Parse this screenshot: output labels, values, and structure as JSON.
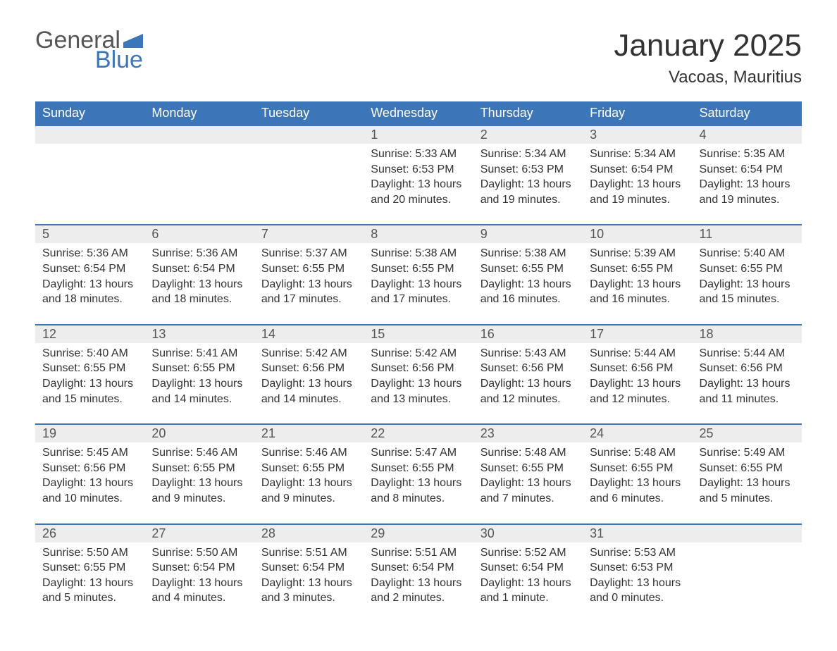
{
  "logo": {
    "text1": "General",
    "text2": "Blue",
    "shape_color": "#3D76B8"
  },
  "title": "January 2025",
  "location": "Vacoas, Mauritius",
  "colors": {
    "header_bg": "#3D76B8",
    "header_text": "#ffffff",
    "daynum_bg": "#EDEDED",
    "border": "#3D76B8",
    "text": "#333333",
    "background": "#ffffff"
  },
  "fonts": {
    "title_size_pt": 33,
    "location_size_pt": 18,
    "header_size_pt": 14,
    "daynum_size_pt": 14,
    "body_size_pt": 12
  },
  "weekdays": [
    "Sunday",
    "Monday",
    "Tuesday",
    "Wednesday",
    "Thursday",
    "Friday",
    "Saturday"
  ],
  "weeks": [
    [
      null,
      null,
      null,
      {
        "n": "1",
        "sunrise": "Sunrise: 5:33 AM",
        "sunset": "Sunset: 6:53 PM",
        "day1": "Daylight: 13 hours",
        "day2": "and 20 minutes."
      },
      {
        "n": "2",
        "sunrise": "Sunrise: 5:34 AM",
        "sunset": "Sunset: 6:53 PM",
        "day1": "Daylight: 13 hours",
        "day2": "and 19 minutes."
      },
      {
        "n": "3",
        "sunrise": "Sunrise: 5:34 AM",
        "sunset": "Sunset: 6:54 PM",
        "day1": "Daylight: 13 hours",
        "day2": "and 19 minutes."
      },
      {
        "n": "4",
        "sunrise": "Sunrise: 5:35 AM",
        "sunset": "Sunset: 6:54 PM",
        "day1": "Daylight: 13 hours",
        "day2": "and 19 minutes."
      }
    ],
    [
      {
        "n": "5",
        "sunrise": "Sunrise: 5:36 AM",
        "sunset": "Sunset: 6:54 PM",
        "day1": "Daylight: 13 hours",
        "day2": "and 18 minutes."
      },
      {
        "n": "6",
        "sunrise": "Sunrise: 5:36 AM",
        "sunset": "Sunset: 6:54 PM",
        "day1": "Daylight: 13 hours",
        "day2": "and 18 minutes."
      },
      {
        "n": "7",
        "sunrise": "Sunrise: 5:37 AM",
        "sunset": "Sunset: 6:55 PM",
        "day1": "Daylight: 13 hours",
        "day2": "and 17 minutes."
      },
      {
        "n": "8",
        "sunrise": "Sunrise: 5:38 AM",
        "sunset": "Sunset: 6:55 PM",
        "day1": "Daylight: 13 hours",
        "day2": "and 17 minutes."
      },
      {
        "n": "9",
        "sunrise": "Sunrise: 5:38 AM",
        "sunset": "Sunset: 6:55 PM",
        "day1": "Daylight: 13 hours",
        "day2": "and 16 minutes."
      },
      {
        "n": "10",
        "sunrise": "Sunrise: 5:39 AM",
        "sunset": "Sunset: 6:55 PM",
        "day1": "Daylight: 13 hours",
        "day2": "and 16 minutes."
      },
      {
        "n": "11",
        "sunrise": "Sunrise: 5:40 AM",
        "sunset": "Sunset: 6:55 PM",
        "day1": "Daylight: 13 hours",
        "day2": "and 15 minutes."
      }
    ],
    [
      {
        "n": "12",
        "sunrise": "Sunrise: 5:40 AM",
        "sunset": "Sunset: 6:55 PM",
        "day1": "Daylight: 13 hours",
        "day2": "and 15 minutes."
      },
      {
        "n": "13",
        "sunrise": "Sunrise: 5:41 AM",
        "sunset": "Sunset: 6:55 PM",
        "day1": "Daylight: 13 hours",
        "day2": "and 14 minutes."
      },
      {
        "n": "14",
        "sunrise": "Sunrise: 5:42 AM",
        "sunset": "Sunset: 6:56 PM",
        "day1": "Daylight: 13 hours",
        "day2": "and 14 minutes."
      },
      {
        "n": "15",
        "sunrise": "Sunrise: 5:42 AM",
        "sunset": "Sunset: 6:56 PM",
        "day1": "Daylight: 13 hours",
        "day2": "and 13 minutes."
      },
      {
        "n": "16",
        "sunrise": "Sunrise: 5:43 AM",
        "sunset": "Sunset: 6:56 PM",
        "day1": "Daylight: 13 hours",
        "day2": "and 12 minutes."
      },
      {
        "n": "17",
        "sunrise": "Sunrise: 5:44 AM",
        "sunset": "Sunset: 6:56 PM",
        "day1": "Daylight: 13 hours",
        "day2": "and 12 minutes."
      },
      {
        "n": "18",
        "sunrise": "Sunrise: 5:44 AM",
        "sunset": "Sunset: 6:56 PM",
        "day1": "Daylight: 13 hours",
        "day2": "and 11 minutes."
      }
    ],
    [
      {
        "n": "19",
        "sunrise": "Sunrise: 5:45 AM",
        "sunset": "Sunset: 6:56 PM",
        "day1": "Daylight: 13 hours",
        "day2": "and 10 minutes."
      },
      {
        "n": "20",
        "sunrise": "Sunrise: 5:46 AM",
        "sunset": "Sunset: 6:55 PM",
        "day1": "Daylight: 13 hours",
        "day2": "and 9 minutes."
      },
      {
        "n": "21",
        "sunrise": "Sunrise: 5:46 AM",
        "sunset": "Sunset: 6:55 PM",
        "day1": "Daylight: 13 hours",
        "day2": "and 9 minutes."
      },
      {
        "n": "22",
        "sunrise": "Sunrise: 5:47 AM",
        "sunset": "Sunset: 6:55 PM",
        "day1": "Daylight: 13 hours",
        "day2": "and 8 minutes."
      },
      {
        "n": "23",
        "sunrise": "Sunrise: 5:48 AM",
        "sunset": "Sunset: 6:55 PM",
        "day1": "Daylight: 13 hours",
        "day2": "and 7 minutes."
      },
      {
        "n": "24",
        "sunrise": "Sunrise: 5:48 AM",
        "sunset": "Sunset: 6:55 PM",
        "day1": "Daylight: 13 hours",
        "day2": "and 6 minutes."
      },
      {
        "n": "25",
        "sunrise": "Sunrise: 5:49 AM",
        "sunset": "Sunset: 6:55 PM",
        "day1": "Daylight: 13 hours",
        "day2": "and 5 minutes."
      }
    ],
    [
      {
        "n": "26",
        "sunrise": "Sunrise: 5:50 AM",
        "sunset": "Sunset: 6:55 PM",
        "day1": "Daylight: 13 hours",
        "day2": "and 5 minutes."
      },
      {
        "n": "27",
        "sunrise": "Sunrise: 5:50 AM",
        "sunset": "Sunset: 6:54 PM",
        "day1": "Daylight: 13 hours",
        "day2": "and 4 minutes."
      },
      {
        "n": "28",
        "sunrise": "Sunrise: 5:51 AM",
        "sunset": "Sunset: 6:54 PM",
        "day1": "Daylight: 13 hours",
        "day2": "and 3 minutes."
      },
      {
        "n": "29",
        "sunrise": "Sunrise: 5:51 AM",
        "sunset": "Sunset: 6:54 PM",
        "day1": "Daylight: 13 hours",
        "day2": "and 2 minutes."
      },
      {
        "n": "30",
        "sunrise": "Sunrise: 5:52 AM",
        "sunset": "Sunset: 6:54 PM",
        "day1": "Daylight: 13 hours",
        "day2": "and 1 minute."
      },
      {
        "n": "31",
        "sunrise": "Sunrise: 5:53 AM",
        "sunset": "Sunset: 6:53 PM",
        "day1": "Daylight: 13 hours",
        "day2": "and 0 minutes."
      },
      null
    ]
  ]
}
